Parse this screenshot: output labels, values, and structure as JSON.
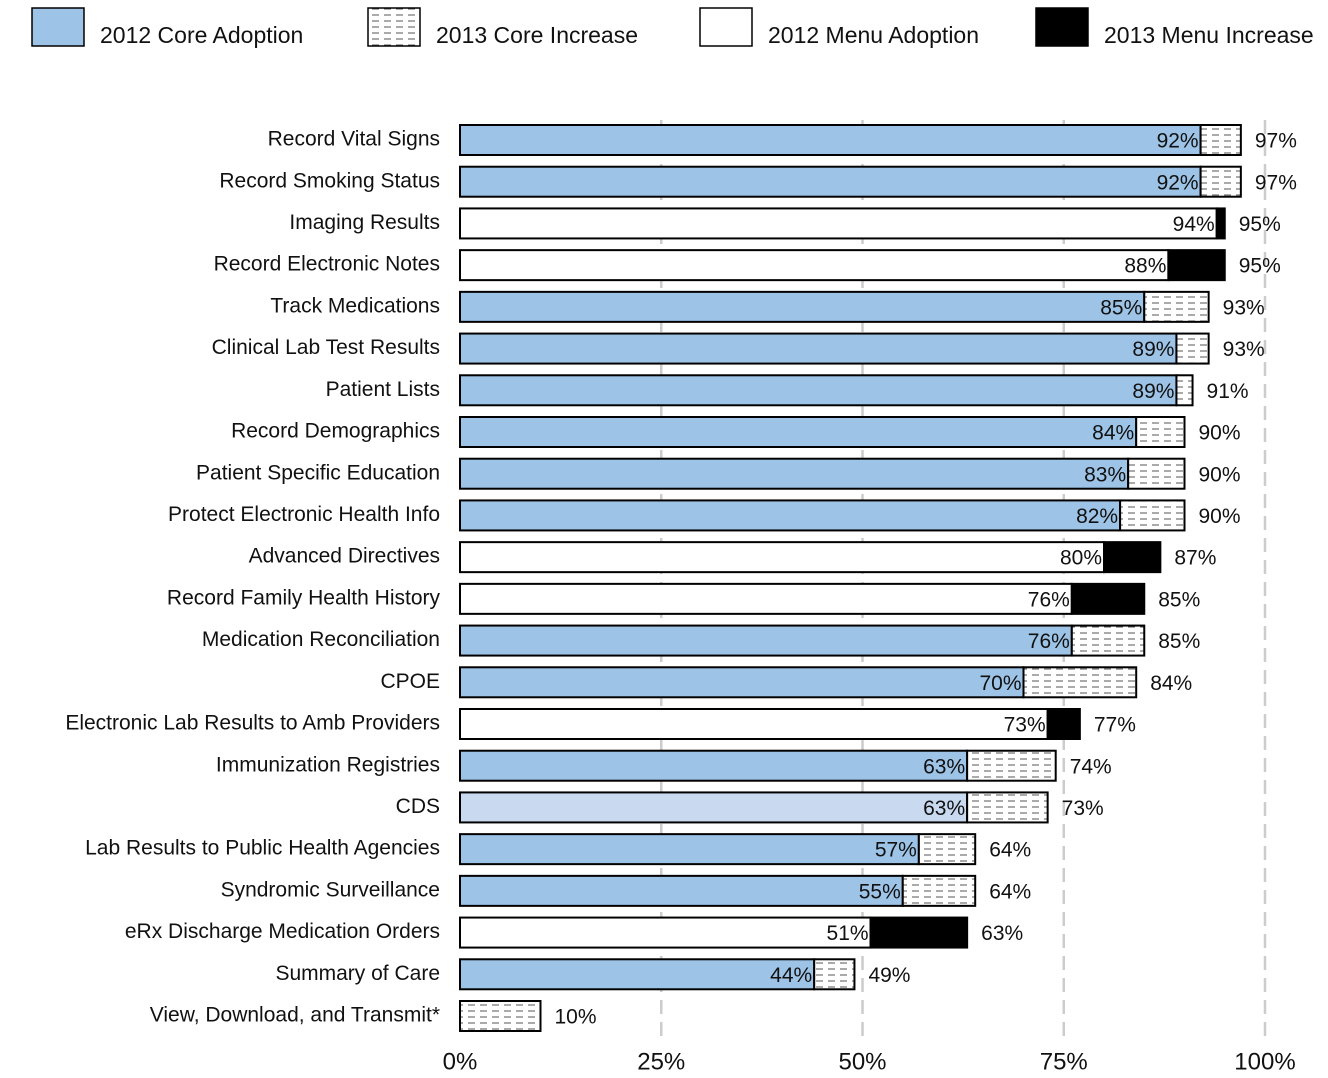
{
  "chart_data": {
    "type": "stacked_barh",
    "legend": "top",
    "grid": true,
    "categories": [
      "Record Vital Signs",
      "Record Smoking Status",
      "Imaging Results",
      "Record Electronic Notes",
      "Track Medications",
      "Clinical Lab Test Results",
      "Patient Lists",
      "Record Demographics",
      "Patient Specific Education",
      "Protect Electronic Health Info",
      "Advanced Directives",
      "Record Family Health History",
      "Medication Reconciliation",
      "CPOE",
      "Electronic Lab Results to Amb Providers",
      "Immunization Registries",
      "CDS",
      "Lab Results to Public Health Agencies",
      "Syndromic Surveillance",
      "eRx Discharge Medication Orders",
      "Summary of Care",
      "View, Download, and Transmit*"
    ],
    "series": [
      {
        "name": "2012 Core Adoption",
        "color": "#9dc3e6",
        "point_colors": [
          null,
          null,
          null,
          null,
          null,
          null,
          null,
          null,
          null,
          null,
          null,
          null,
          null,
          null,
          null,
          null,
          "#c9daf0",
          null,
          null,
          null,
          null,
          null
        ],
        "values": [
          92,
          92,
          null,
          null,
          85,
          89,
          89,
          84,
          83,
          82,
          null,
          null,
          76,
          70,
          null,
          63,
          63,
          57,
          55,
          null,
          44,
          null
        ],
        "value_labels": [
          "92%",
          "92%",
          null,
          null,
          "85%",
          "89%",
          "89%",
          "84%",
          "83%",
          "82%",
          null,
          null,
          "76%",
          "70%",
          null,
          "63%",
          "63%",
          "57%",
          "55%",
          null,
          "44%",
          null
        ]
      },
      {
        "name": "2013 Core Increase",
        "color": "#ffffff",
        "pattern": "dashes",
        "values": [
          5,
          5,
          null,
          null,
          8,
          4,
          2,
          6,
          7,
          8,
          null,
          null,
          9,
          14,
          null,
          11,
          10,
          7,
          9,
          null,
          5,
          10
        ]
      },
      {
        "name": "2012 Menu Adoption",
        "color": "#ffffff",
        "values": [
          null,
          null,
          94,
          88,
          null,
          null,
          null,
          null,
          null,
          null,
          80,
          76,
          null,
          null,
          73,
          null,
          null,
          null,
          null,
          51,
          null,
          null
        ],
        "value_labels": [
          null,
          null,
          "94%",
          "88%",
          null,
          null,
          null,
          null,
          null,
          null,
          "80%",
          "76%",
          null,
          null,
          "73%",
          null,
          null,
          null,
          null,
          "51%",
          null,
          null
        ]
      },
      {
        "name": "2013 Menu Increase",
        "color": "#000000",
        "values": [
          null,
          null,
          1,
          7,
          null,
          null,
          null,
          null,
          null,
          null,
          7,
          9,
          null,
          null,
          4,
          null,
          null,
          null,
          null,
          12,
          null,
          null
        ]
      }
    ],
    "totals": {
      "values": [
        97,
        97,
        95,
        95,
        93,
        93,
        91,
        90,
        90,
        90,
        87,
        85,
        85,
        84,
        77,
        74,
        73,
        64,
        64,
        63,
        49,
        10
      ],
      "value_labels": [
        "97%",
        "97%",
        "95%",
        "95%",
        "93%",
        "93%",
        "91%",
        "90%",
        "90%",
        "90%",
        "87%",
        "85%",
        "85%",
        "84%",
        "77%",
        "74%",
        "73%",
        "64%",
        "64%",
        "63%",
        "49%",
        "10%"
      ]
    },
    "xlim": [
      0,
      100
    ],
    "xticks": [
      {
        "value": 0,
        "label": "0%"
      },
      {
        "value": 25,
        "label": "25%"
      },
      {
        "value": 50,
        "label": "50%"
      },
      {
        "value": 75,
        "label": "75%"
      },
      {
        "value": 100,
        "label": "100%"
      }
    ]
  }
}
